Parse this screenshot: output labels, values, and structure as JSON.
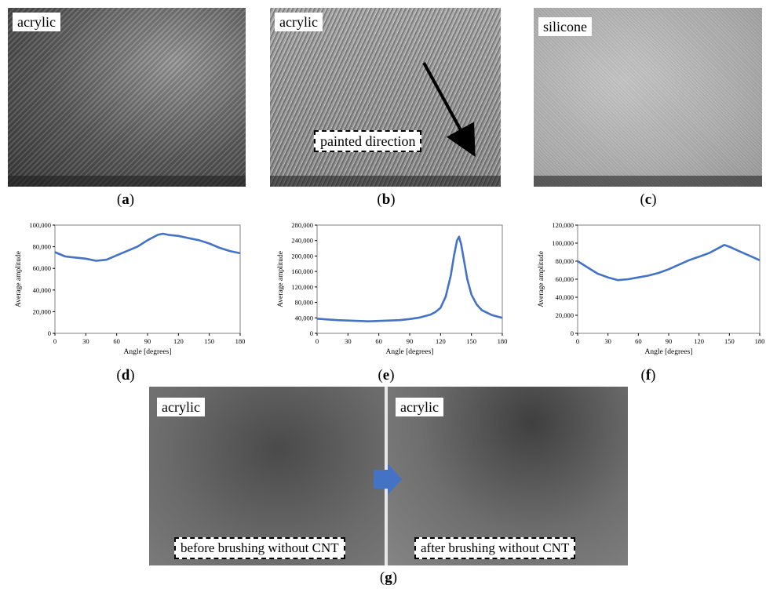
{
  "panels": {
    "a": {
      "letter": "a",
      "label": "acrylic"
    },
    "b": {
      "letter": "b",
      "label": "acrylic",
      "annotation": "painted direction"
    },
    "c": {
      "letter": "c",
      "label": "silicone"
    },
    "d": {
      "letter": "d"
    },
    "e": {
      "letter": "e"
    },
    "f": {
      "letter": "f"
    },
    "g": {
      "letter": "g",
      "left_label": "acrylic",
      "right_label": "acrylic",
      "left_caption": "before brushing without CNT",
      "right_caption": "after brushing without CNT"
    }
  },
  "colors": {
    "line": "#4472c4",
    "arrow": "#4472c4"
  },
  "chart_data": [
    {
      "type": "line",
      "id": "d",
      "xlabel": "Angle [degrees]",
      "ylabel": "Average amplitude",
      "xlim": [
        0,
        180
      ],
      "ylim": [
        0,
        100000
      ],
      "xticks": [
        0,
        30,
        60,
        90,
        120,
        150,
        180
      ],
      "xtick_labels": [
        "0",
        "30",
        "60",
        "90",
        "120",
        "150",
        "180"
      ],
      "yticks": [
        0,
        20000,
        40000,
        60000,
        80000,
        100000
      ],
      "ytick_labels": [
        "0",
        "20,000",
        "40,000",
        "60,000",
        "80,000",
        "100,000"
      ],
      "x": [
        0,
        10,
        20,
        30,
        40,
        50,
        60,
        70,
        80,
        90,
        100,
        105,
        110,
        120,
        130,
        140,
        150,
        160,
        170,
        180
      ],
      "y": [
        75000,
        71000,
        70000,
        69000,
        67000,
        68000,
        72000,
        76000,
        80000,
        86000,
        91000,
        92000,
        91000,
        90000,
        88000,
        86000,
        83000,
        79000,
        76000,
        74000
      ]
    },
    {
      "type": "line",
      "id": "e",
      "xlabel": "Angle [degrees]",
      "ylabel": "Average amplitude",
      "xlim": [
        0,
        180
      ],
      "ylim": [
        0,
        280000
      ],
      "xticks": [
        0,
        30,
        60,
        90,
        120,
        150,
        180
      ],
      "xtick_labels": [
        "0",
        "30",
        "60",
        "90",
        "120",
        "150",
        "180"
      ],
      "yticks": [
        0,
        40000,
        80000,
        120000,
        160000,
        200000,
        240000,
        280000
      ],
      "ytick_labels": [
        "0",
        "40,000",
        "80,000",
        "120,000",
        "160,000",
        "200,000",
        "240,000",
        "280,000"
      ],
      "x": [
        0,
        10,
        20,
        30,
        40,
        50,
        60,
        70,
        80,
        90,
        100,
        110,
        115,
        120,
        125,
        130,
        133,
        136,
        138,
        140,
        143,
        146,
        150,
        155,
        160,
        170,
        180
      ],
      "y": [
        38000,
        36000,
        34000,
        33000,
        32000,
        31000,
        32000,
        33000,
        34000,
        37000,
        41000,
        48000,
        55000,
        66000,
        95000,
        150000,
        200000,
        240000,
        250000,
        230000,
        185000,
        140000,
        100000,
        75000,
        60000,
        47000,
        40000
      ]
    },
    {
      "type": "line",
      "id": "f",
      "xlabel": "Angle [degrees]",
      "ylabel": "Average amplitude",
      "xlim": [
        0,
        180
      ],
      "ylim": [
        0,
        120000
      ],
      "xticks": [
        0,
        30,
        60,
        90,
        120,
        150,
        180
      ],
      "xtick_labels": [
        "0",
        "30",
        "60",
        "90",
        "120",
        "150",
        "180"
      ],
      "yticks": [
        0,
        20000,
        40000,
        60000,
        80000,
        100000,
        120000
      ],
      "ytick_labels": [
        "0",
        "20,000",
        "40,000",
        "60,000",
        "80,000",
        "100,000",
        "120,000"
      ],
      "x": [
        0,
        10,
        20,
        30,
        40,
        50,
        60,
        70,
        80,
        90,
        100,
        110,
        120,
        130,
        140,
        145,
        150,
        160,
        170,
        180
      ],
      "y": [
        80000,
        73000,
        66000,
        62000,
        59000,
        60000,
        62000,
        64000,
        67000,
        71000,
        76000,
        81000,
        85000,
        89000,
        95000,
        98000,
        96000,
        91000,
        86000,
        81000
      ]
    }
  ]
}
